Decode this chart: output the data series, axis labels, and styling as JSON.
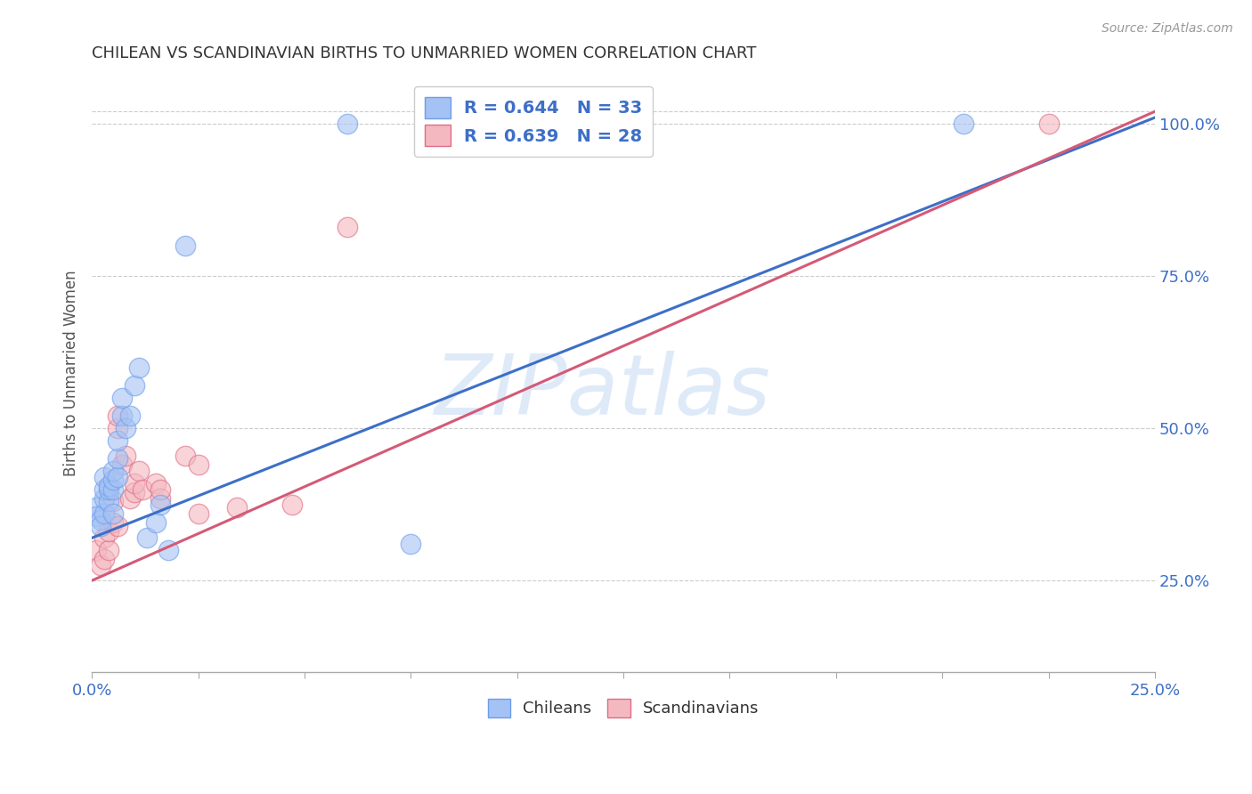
{
  "title": "CHILEAN VS SCANDINAVIAN BIRTHS TO UNMARRIED WOMEN CORRELATION CHART",
  "source": "Source: ZipAtlas.com",
  "ylabel": "Births to Unmarried Women",
  "xlabel": "",
  "xlim": [
    0.0,
    0.25
  ],
  "ylim": [
    0.1,
    1.08
  ],
  "xtick_positions": [
    0.0,
    0.025,
    0.05,
    0.075,
    0.1,
    0.125,
    0.15,
    0.175,
    0.2,
    0.225,
    0.25
  ],
  "yticks_right": [
    0.25,
    0.5,
    0.75,
    1.0
  ],
  "ytick_right_labels": [
    "25.0%",
    "50.0%",
    "75.0%",
    "100.0%"
  ],
  "blue_color": "#a4c2f4",
  "pink_color": "#f4b8c1",
  "blue_edge_color": "#6d9eeb",
  "pink_edge_color": "#e06c84",
  "blue_line_color": "#3d6fc7",
  "pink_line_color": "#d45a77",
  "watermark_text": "ZIPatlas",
  "legend_text_blue": "R = 0.644   N = 33",
  "legend_text_pink": "R = 0.639   N = 28",
  "chileans_label": "Chileans",
  "scandinavians_label": "Scandinavians",
  "blue_scatter": [
    [
      0.001,
      0.37
    ],
    [
      0.001,
      0.355
    ],
    [
      0.002,
      0.35
    ],
    [
      0.002,
      0.34
    ],
    [
      0.003,
      0.36
    ],
    [
      0.003,
      0.385
    ],
    [
      0.003,
      0.4
    ],
    [
      0.003,
      0.42
    ],
    [
      0.004,
      0.38
    ],
    [
      0.004,
      0.4
    ],
    [
      0.004,
      0.405
    ],
    [
      0.005,
      0.36
    ],
    [
      0.005,
      0.4
    ],
    [
      0.005,
      0.415
    ],
    [
      0.005,
      0.43
    ],
    [
      0.006,
      0.42
    ],
    [
      0.006,
      0.45
    ],
    [
      0.006,
      0.48
    ],
    [
      0.007,
      0.52
    ],
    [
      0.007,
      0.55
    ],
    [
      0.008,
      0.5
    ],
    [
      0.009,
      0.52
    ],
    [
      0.01,
      0.57
    ],
    [
      0.011,
      0.6
    ],
    [
      0.013,
      0.32
    ],
    [
      0.015,
      0.345
    ],
    [
      0.016,
      0.375
    ],
    [
      0.018,
      0.3
    ],
    [
      0.022,
      0.8
    ],
    [
      0.06,
      1.0
    ],
    [
      0.075,
      0.31
    ],
    [
      0.1,
      1.0
    ],
    [
      0.205,
      1.0
    ]
  ],
  "pink_scatter": [
    [
      0.001,
      0.3
    ],
    [
      0.002,
      0.275
    ],
    [
      0.003,
      0.285
    ],
    [
      0.003,
      0.32
    ],
    [
      0.004,
      0.3
    ],
    [
      0.004,
      0.33
    ],
    [
      0.005,
      0.345
    ],
    [
      0.005,
      0.38
    ],
    [
      0.006,
      0.34
    ],
    [
      0.006,
      0.5
    ],
    [
      0.006,
      0.52
    ],
    [
      0.007,
      0.44
    ],
    [
      0.008,
      0.455
    ],
    [
      0.009,
      0.385
    ],
    [
      0.01,
      0.395
    ],
    [
      0.01,
      0.41
    ],
    [
      0.011,
      0.43
    ],
    [
      0.012,
      0.4
    ],
    [
      0.015,
      0.41
    ],
    [
      0.016,
      0.385
    ],
    [
      0.016,
      0.4
    ],
    [
      0.022,
      0.455
    ],
    [
      0.025,
      0.44
    ],
    [
      0.025,
      0.36
    ],
    [
      0.034,
      0.37
    ],
    [
      0.047,
      0.375
    ],
    [
      0.06,
      0.83
    ],
    [
      0.225,
      1.0
    ]
  ],
  "blue_line": [
    0.0,
    0.25,
    0.32,
    1.01
  ],
  "pink_line": [
    0.0,
    0.25,
    0.25,
    1.02
  ]
}
